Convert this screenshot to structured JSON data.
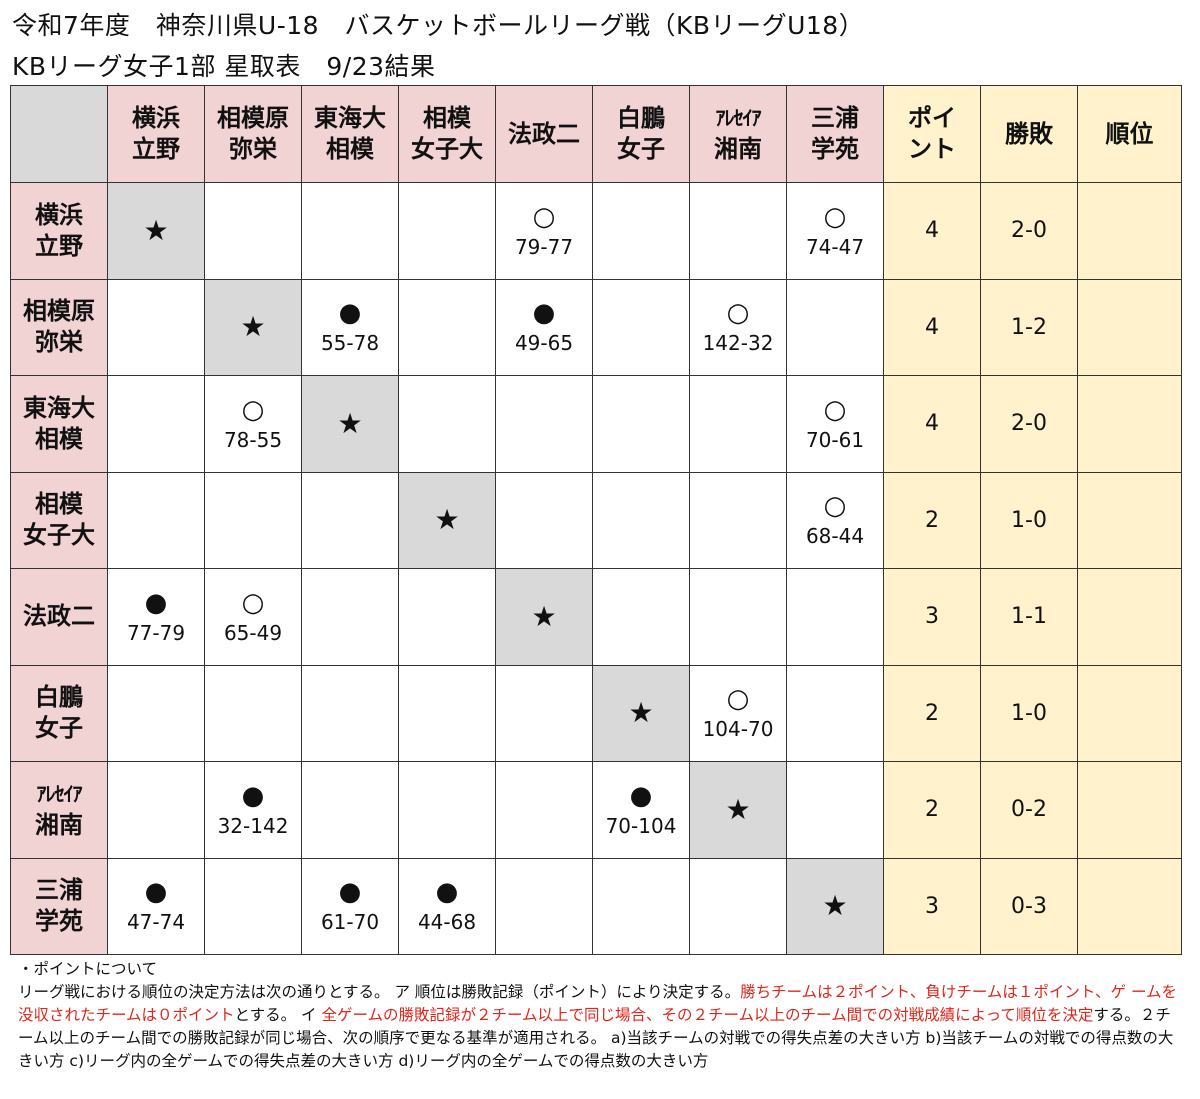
{
  "title_line1": "令和7年度　神奈川県U-18　バスケットボールリーグ戦（KBリーグU18）",
  "title_line2": "KBリーグ女子1部 星取表　9/23結果",
  "columns": {
    "teams": [
      {
        "line1": "横浜",
        "line2": "立野"
      },
      {
        "line1": "相模原",
        "line2": "弥栄"
      },
      {
        "line1": "東海大",
        "line2": "相模"
      },
      {
        "line1": "相模",
        "line2": "女子大"
      },
      {
        "line1": "法政二",
        "line2": ""
      },
      {
        "line1": "白鵬",
        "line2": "女子"
      },
      {
        "line1": "ｱﾚｾｲｱ",
        "line2": "湘南"
      },
      {
        "line1": "三浦",
        "line2": "学苑"
      }
    ],
    "points": {
      "line1": "ポイ",
      "line2": "ント"
    },
    "record": "勝敗",
    "rank": "順位"
  },
  "self_mark": "★",
  "rows": [
    {
      "line1": "横浜",
      "line2": "立野",
      "points": "4",
      "record": "2-0",
      "rank": "",
      "cells": [
        {
          "mark": "",
          "score": ""
        },
        {
          "mark": "",
          "score": ""
        },
        {
          "mark": "",
          "score": ""
        },
        {
          "mark": "",
          "score": ""
        },
        {
          "mark": "○",
          "score": "79-77"
        },
        {
          "mark": "",
          "score": ""
        },
        {
          "mark": "",
          "score": ""
        },
        {
          "mark": "○",
          "score": "74-47"
        }
      ]
    },
    {
      "line1": "相模原",
      "line2": "弥栄",
      "points": "4",
      "record": "1-2",
      "rank": "",
      "cells": [
        {
          "mark": "",
          "score": ""
        },
        {
          "mark": "",
          "score": ""
        },
        {
          "mark": "●",
          "score": "55-78"
        },
        {
          "mark": "",
          "score": ""
        },
        {
          "mark": "●",
          "score": "49-65"
        },
        {
          "mark": "",
          "score": ""
        },
        {
          "mark": "○",
          "score": "142-32"
        },
        {
          "mark": "",
          "score": ""
        }
      ]
    },
    {
      "line1": "東海大",
      "line2": "相模",
      "points": "4",
      "record": "2-0",
      "rank": "",
      "cells": [
        {
          "mark": "",
          "score": ""
        },
        {
          "mark": "○",
          "score": "78-55"
        },
        {
          "mark": "",
          "score": ""
        },
        {
          "mark": "",
          "score": ""
        },
        {
          "mark": "",
          "score": ""
        },
        {
          "mark": "",
          "score": ""
        },
        {
          "mark": "",
          "score": ""
        },
        {
          "mark": "○",
          "score": "70-61"
        }
      ]
    },
    {
      "line1": "相模",
      "line2": "女子大",
      "points": "2",
      "record": "1-0",
      "rank": "",
      "cells": [
        {
          "mark": "",
          "score": ""
        },
        {
          "mark": "",
          "score": ""
        },
        {
          "mark": "",
          "score": ""
        },
        {
          "mark": "",
          "score": ""
        },
        {
          "mark": "",
          "score": ""
        },
        {
          "mark": "",
          "score": ""
        },
        {
          "mark": "",
          "score": ""
        },
        {
          "mark": "○",
          "score": "68-44"
        }
      ]
    },
    {
      "line1": "法政二",
      "line2": "",
      "points": "3",
      "record": "1-1",
      "rank": "",
      "cells": [
        {
          "mark": "●",
          "score": "77-79"
        },
        {
          "mark": "○",
          "score": "65-49"
        },
        {
          "mark": "",
          "score": ""
        },
        {
          "mark": "",
          "score": ""
        },
        {
          "mark": "",
          "score": ""
        },
        {
          "mark": "",
          "score": ""
        },
        {
          "mark": "",
          "score": ""
        },
        {
          "mark": "",
          "score": ""
        }
      ]
    },
    {
      "line1": "白鵬",
      "line2": "女子",
      "points": "2",
      "record": "1-0",
      "rank": "",
      "cells": [
        {
          "mark": "",
          "score": ""
        },
        {
          "mark": "",
          "score": ""
        },
        {
          "mark": "",
          "score": ""
        },
        {
          "mark": "",
          "score": ""
        },
        {
          "mark": "",
          "score": ""
        },
        {
          "mark": "",
          "score": ""
        },
        {
          "mark": "○",
          "score": "104-70"
        },
        {
          "mark": "",
          "score": ""
        }
      ]
    },
    {
      "line1": "ｱﾚｾｲｱ",
      "line2": "湘南",
      "points": "2",
      "record": "0-2",
      "rank": "",
      "cells": [
        {
          "mark": "",
          "score": ""
        },
        {
          "mark": "●",
          "score": "32-142"
        },
        {
          "mark": "",
          "score": ""
        },
        {
          "mark": "",
          "score": ""
        },
        {
          "mark": "",
          "score": ""
        },
        {
          "mark": "●",
          "score": "70-104"
        },
        {
          "mark": "",
          "score": ""
        },
        {
          "mark": "",
          "score": ""
        }
      ]
    },
    {
      "line1": "三浦",
      "line2": "学苑",
      "points": "3",
      "record": "0-3",
      "rank": "",
      "cells": [
        {
          "mark": "●",
          "score": "47-74"
        },
        {
          "mark": "",
          "score": ""
        },
        {
          "mark": "●",
          "score": "61-70"
        },
        {
          "mark": "●",
          "score": "44-68"
        },
        {
          "mark": "",
          "score": ""
        },
        {
          "mark": "",
          "score": ""
        },
        {
          "mark": "",
          "score": ""
        },
        {
          "mark": "",
          "score": ""
        }
      ]
    }
  ],
  "notes": {
    "heading": "・ポイントについて",
    "p1": "リーグ戦における順位の決定方法は次の通りとする。 ア 順位は勝敗記録（ポイント）により決定する。",
    "p1_red": "勝ちチームは２ポイント、負けチームは１ポイント、ゲ ームを没収されたチームは０ポイント",
    "p2": "とする。 イ ",
    "p2_red": "全ゲームの勝敗記録が２チーム以上で同じ場合、その２チーム以上のチーム間での対戦成績によって順位を決定",
    "p3": "する。２チーム以上のチーム間での勝敗記録が同じ場合、次の順序で更なる基準が適用される。 a)当該チームの対戦での得失点差の大きい方 b)当該チームの対戦での得点数の大きい方 c)リーグ内の全ゲームでの得失点差の大きい方 d)リーグ内の全ゲームでの得点数の大きい方"
  },
  "colors": {
    "team_header": "#f2d3d4",
    "stat_header": "#fff2cc",
    "self_cell": "#d9d9d9",
    "note_red": "#e0261b"
  }
}
